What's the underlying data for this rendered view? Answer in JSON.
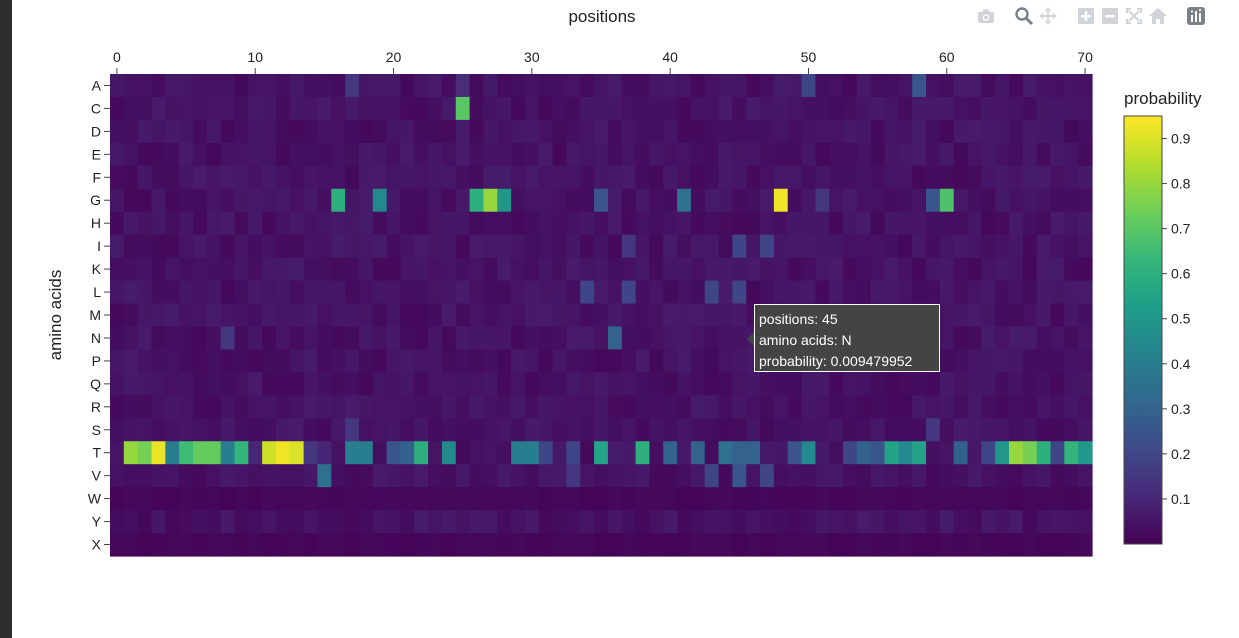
{
  "modebar": {
    "icons": [
      "camera-icon",
      "zoom-icon",
      "pan-icon",
      "zoom-in-icon",
      "zoom-out-icon",
      "autoscale-icon",
      "home-icon",
      "plotly-logo-icon"
    ]
  },
  "tooltip": {
    "line1": "positions: 45",
    "line2": "amino acids: N",
    "line3": "probability: 0.009479952"
  },
  "chart_data": {
    "type": "heatmap",
    "title": "",
    "xlabel": "positions",
    "ylabel": "amino acids",
    "colorbar_title": "probability",
    "colorscale": "viridis",
    "zlim": [
      0,
      0.95
    ],
    "x_ticks": [
      "0",
      "10",
      "20",
      "30",
      "40",
      "50",
      "60",
      "70"
    ],
    "y_categories": [
      "A",
      "C",
      "D",
      "E",
      "F",
      "G",
      "H",
      "I",
      "K",
      "L",
      "M",
      "N",
      "P",
      "Q",
      "R",
      "S",
      "T",
      "V",
      "W",
      "Y",
      "X"
    ],
    "colorbar_ticks": [
      "0.1",
      "0.2",
      "0.3",
      "0.4",
      "0.5",
      "0.6",
      "0.7",
      "0.8",
      "0.9"
    ],
    "x_range": [
      0,
      70
    ],
    "background_value": 0.02,
    "highlights": [
      {
        "aa": "A",
        "pos": 17,
        "p": 0.15
      },
      {
        "aa": "A",
        "pos": 25,
        "p": 0.12
      },
      {
        "aa": "A",
        "pos": 50,
        "p": 0.2
      },
      {
        "aa": "A",
        "pos": 58,
        "p": 0.25
      },
      {
        "aa": "C",
        "pos": 25,
        "p": 0.7
      },
      {
        "aa": "G",
        "pos": 16,
        "p": 0.6
      },
      {
        "aa": "G",
        "pos": 19,
        "p": 0.45
      },
      {
        "aa": "G",
        "pos": 26,
        "p": 0.6
      },
      {
        "aa": "G",
        "pos": 27,
        "p": 0.8
      },
      {
        "aa": "G",
        "pos": 28,
        "p": 0.5
      },
      {
        "aa": "G",
        "pos": 35,
        "p": 0.25
      },
      {
        "aa": "G",
        "pos": 41,
        "p": 0.35
      },
      {
        "aa": "G",
        "pos": 48,
        "p": 0.93
      },
      {
        "aa": "G",
        "pos": 51,
        "p": 0.15
      },
      {
        "aa": "G",
        "pos": 59,
        "p": 0.25
      },
      {
        "aa": "G",
        "pos": 60,
        "p": 0.68
      },
      {
        "aa": "I",
        "pos": 37,
        "p": 0.15
      },
      {
        "aa": "I",
        "pos": 45,
        "p": 0.2
      },
      {
        "aa": "I",
        "pos": 47,
        "p": 0.2
      },
      {
        "aa": "L",
        "pos": 34,
        "p": 0.2
      },
      {
        "aa": "L",
        "pos": 37,
        "p": 0.2
      },
      {
        "aa": "L",
        "pos": 43,
        "p": 0.2
      },
      {
        "aa": "L",
        "pos": 45,
        "p": 0.2
      },
      {
        "aa": "N",
        "pos": 8,
        "p": 0.15
      },
      {
        "aa": "N",
        "pos": 36,
        "p": 0.3
      },
      {
        "aa": "S",
        "pos": 17,
        "p": 0.15
      },
      {
        "aa": "S",
        "pos": 59,
        "p": 0.15
      },
      {
        "aa": "T",
        "pos": 1,
        "p": 0.8
      },
      {
        "aa": "T",
        "pos": 2,
        "p": 0.75
      },
      {
        "aa": "T",
        "pos": 3,
        "p": 0.92
      },
      {
        "aa": "T",
        "pos": 4,
        "p": 0.4
      },
      {
        "aa": "T",
        "pos": 5,
        "p": 0.65
      },
      {
        "aa": "T",
        "pos": 6,
        "p": 0.72
      },
      {
        "aa": "T",
        "pos": 7,
        "p": 0.72
      },
      {
        "aa": "T",
        "pos": 8,
        "p": 0.4
      },
      {
        "aa": "T",
        "pos": 9,
        "p": 0.62
      },
      {
        "aa": "T",
        "pos": 10,
        "p": 0.1
      },
      {
        "aa": "T",
        "pos": 11,
        "p": 0.88
      },
      {
        "aa": "T",
        "pos": 12,
        "p": 0.93
      },
      {
        "aa": "T",
        "pos": 13,
        "p": 0.9
      },
      {
        "aa": "T",
        "pos": 14,
        "p": 0.15
      },
      {
        "aa": "T",
        "pos": 15,
        "p": 0.1
      },
      {
        "aa": "T",
        "pos": 17,
        "p": 0.4
      },
      {
        "aa": "T",
        "pos": 18,
        "p": 0.4
      },
      {
        "aa": "T",
        "pos": 20,
        "p": 0.25
      },
      {
        "aa": "T",
        "pos": 21,
        "p": 0.3
      },
      {
        "aa": "T",
        "pos": 22,
        "p": 0.6
      },
      {
        "aa": "T",
        "pos": 24,
        "p": 0.45
      },
      {
        "aa": "T",
        "pos": 29,
        "p": 0.4
      },
      {
        "aa": "T",
        "pos": 30,
        "p": 0.4
      },
      {
        "aa": "T",
        "pos": 31,
        "p": 0.2
      },
      {
        "aa": "T",
        "pos": 33,
        "p": 0.2
      },
      {
        "aa": "T",
        "pos": 35,
        "p": 0.55
      },
      {
        "aa": "T",
        "pos": 38,
        "p": 0.6
      },
      {
        "aa": "T",
        "pos": 40,
        "p": 0.3
      },
      {
        "aa": "T",
        "pos": 42,
        "p": 0.3
      },
      {
        "aa": "T",
        "pos": 44,
        "p": 0.35
      },
      {
        "aa": "T",
        "pos": 45,
        "p": 0.3
      },
      {
        "aa": "T",
        "pos": 46,
        "p": 0.3
      },
      {
        "aa": "T",
        "pos": 49,
        "p": 0.25
      },
      {
        "aa": "T",
        "pos": 50,
        "p": 0.45
      },
      {
        "aa": "T",
        "pos": 53,
        "p": 0.2
      },
      {
        "aa": "T",
        "pos": 54,
        "p": 0.3
      },
      {
        "aa": "T",
        "pos": 55,
        "p": 0.25
      },
      {
        "aa": "T",
        "pos": 56,
        "p": 0.55
      },
      {
        "aa": "T",
        "pos": 57,
        "p": 0.45
      },
      {
        "aa": "T",
        "pos": 58,
        "p": 0.55
      },
      {
        "aa": "T",
        "pos": 61,
        "p": 0.3
      },
      {
        "aa": "T",
        "pos": 63,
        "p": 0.2
      },
      {
        "aa": "T",
        "pos": 64,
        "p": 0.5
      },
      {
        "aa": "T",
        "pos": 65,
        "p": 0.8
      },
      {
        "aa": "T",
        "pos": 66,
        "p": 0.75
      },
      {
        "aa": "T",
        "pos": 67,
        "p": 0.6
      },
      {
        "aa": "T",
        "pos": 68,
        "p": 0.2
      },
      {
        "aa": "T",
        "pos": 69,
        "p": 0.62
      },
      {
        "aa": "T",
        "pos": 70,
        "p": 0.5
      },
      {
        "aa": "V",
        "pos": 15,
        "p": 0.35
      },
      {
        "aa": "V",
        "pos": 33,
        "p": 0.15
      },
      {
        "aa": "V",
        "pos": 43,
        "p": 0.2
      },
      {
        "aa": "V",
        "pos": 45,
        "p": 0.25
      },
      {
        "aa": "V",
        "pos": 47,
        "p": 0.2
      }
    ]
  }
}
